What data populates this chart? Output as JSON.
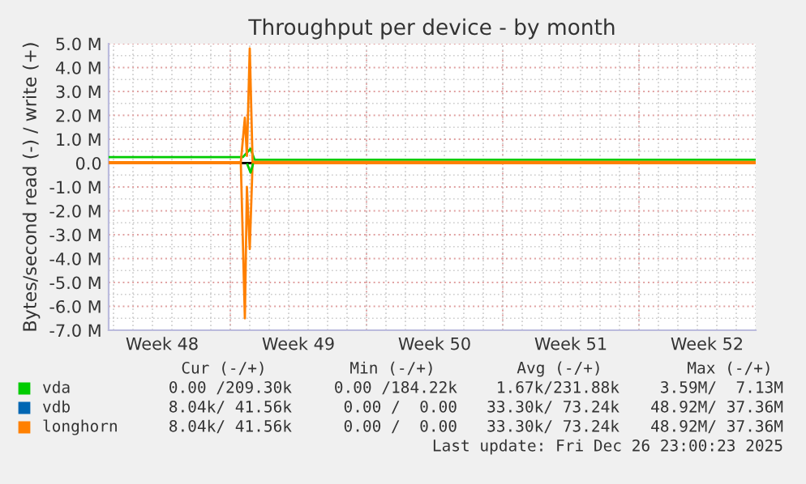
{
  "chart_data": {
    "type": "line",
    "title": "Throughput per device - by month",
    "ylabel": "Bytes/second read (-) / write (+)",
    "xlim": [
      "2025-11-24T18:00",
      "2025-12-28T00:00"
    ],
    "xticks": [
      {
        "value": "2025-11-27T12:00",
        "label": "Week 48"
      },
      {
        "value": "2025-12-04T12:00",
        "label": "Week 49"
      },
      {
        "value": "2025-12-11T12:00",
        "label": "Week 50"
      },
      {
        "value": "2025-12-18T12:00",
        "label": "Week 51"
      },
      {
        "value": "2025-12-25T12:00",
        "label": "Week 52"
      }
    ],
    "ylim": [
      -7,
      5
    ],
    "yticks": [
      {
        "value": -7,
        "label": "-7.0 M"
      },
      {
        "value": -6,
        "label": "-6.0 M"
      },
      {
        "value": -5,
        "label": "-5.0 M"
      },
      {
        "value": -4,
        "label": "-4.0 M"
      },
      {
        "value": -3,
        "label": "-3.0 M"
      },
      {
        "value": -2,
        "label": "-2.0 M"
      },
      {
        "value": -1,
        "label": "-1.0 M"
      },
      {
        "value": 0,
        "label": "0.0"
      },
      {
        "value": 1,
        "label": "1.0 M"
      },
      {
        "value": 2,
        "label": "2.0 M"
      },
      {
        "value": 3,
        "label": "3.0 M"
      },
      {
        "value": 4,
        "label": "4.0 M"
      },
      {
        "value": 5,
        "label": "5.0 M"
      }
    ],
    "grid": true,
    "legend": "bottom",
    "marker": "none",
    "line_style": "solid",
    "ref_lines": [
      {
        "axis": "y",
        "value": 0,
        "color": "#000000"
      }
    ],
    "series": [
      {
        "name": "vda",
        "color": "#00cc00",
        "x": [
          "2025-11-24T18:00",
          "2025-12-01T15:30",
          "2025-12-02T01:00",
          "2025-12-02T06:00",
          "2025-12-28T00:00"
        ],
        "values": [
          0.25,
          0.25,
          0.6,
          0.14,
          0.14
        ]
      },
      {
        "name": "vdb",
        "color": "#0066b3"
      },
      {
        "color": "#ff8000",
        "x": [
          "2025-11-24T18:00",
          "2025-12-01T13:00",
          "2025-12-01T18:00",
          "2025-12-01T20:30",
          "2025-12-02T00:00",
          "2025-12-02T03:30",
          "2025-12-28T00:00"
        ],
        "values": [
          0,
          0,
          -6.5,
          -1.0,
          -3.6,
          0,
          0
        ]
      },
      {
        "name": "longhorn",
        "color": "#ff8000",
        "x": [
          "2025-11-24T18:00",
          "2025-12-01T13:00",
          "2025-12-01T18:00",
          "2025-12-01T20:30",
          "2025-12-02T00:00",
          "2025-12-02T03:30",
          "2025-12-28T00:00"
        ],
        "values": [
          0.04,
          0.04,
          1.9,
          0.3,
          4.8,
          0.05,
          0.05
        ]
      },
      {
        "color": "#00cc00",
        "x": [
          "2025-12-01T21:00",
          "2025-12-02T01:00",
          "2025-12-02T04:00"
        ],
        "values": [
          -0.05,
          -0.4,
          -0.05
        ]
      }
    ],
    "annotations": [
      "Cur (-/+)",
      "Min (-/+)",
      "Avg (-/+)",
      "Max (-/+)",
      "0.00 /209.30k",
      "0.00 /184.22k",
      "1.67k/231.88k",
      "3.59M/  7.13M",
      "8.04k/ 41.56k",
      "0.00 /  0.00",
      "33.30k/ 73.24k",
      "48.92M/ 37.36M",
      "8.04k/ 41.56k",
      "0.00 /  0.00",
      "33.30k/ 73.24k",
      "48.92M/ 37.36M",
      "Last update: Fri Dec 26 23:00:23 2025"
    ]
  }
}
